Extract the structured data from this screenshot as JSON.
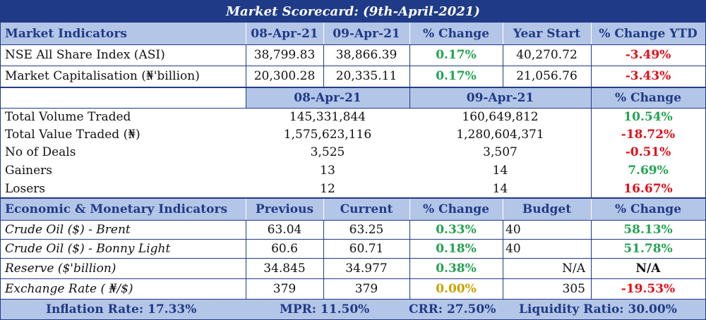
{
  "title": "Market Scorecard: (9th-April-2021)",
  "market": {
    "headers": [
      "Market Indicators",
      "08-Apr-21",
      "09-Apr-21",
      "% Change",
      "Year Start",
      "% Change YTD"
    ],
    "rows": [
      {
        "label": "NSE All Share Index (ASI)",
        "d1": "38,799.83",
        "d2": "38,866.39",
        "chg": "0.17%",
        "ys": "40,270.72",
        "ytd": "-3.49%"
      },
      {
        "label": "Market Capitalisation (₦'billion)",
        "d1": "20,300.28",
        "d2": "20,335.11",
        "chg": "0.17%",
        "ys": "21,056.76",
        "ytd": "-3.43%"
      }
    ]
  },
  "trading": {
    "headers": [
      "08-Apr-21",
      "09-Apr-21",
      "% Change"
    ],
    "rows": [
      {
        "label": "Total Volume Traded",
        "d1": "145,331,844",
        "d2": "160,649,812",
        "chg": "10.54%"
      },
      {
        "label": "Total Value Traded (₦)",
        "d1": "1,575,623,116",
        "d2": "1,280,604,371",
        "chg": "-18.72%"
      },
      {
        "label": "No of Deals",
        "d1": "3,525",
        "d2": "3,507",
        "chg": "-0.51%"
      },
      {
        "label": "Gainers",
        "d1": "13",
        "d2": "14",
        "chg": "7.69%"
      },
      {
        "label": "Losers",
        "d1": "12",
        "d2": "14",
        "chg": "16.67%"
      }
    ]
  },
  "economic": {
    "headers": [
      "Economic & Monetary Indicators",
      "Previous",
      "Current",
      "% Change",
      "Budget",
      "% Change"
    ],
    "rows": [
      {
        "label": "Crude Oil ($) - Brent",
        "prev": "63.04",
        "cur": "63.25",
        "chg": "0.33%",
        "budget": "40",
        "bchg": "58.13%"
      },
      {
        "label": "Crude Oil ($) - Bonny Light",
        "prev": "60.6",
        "cur": "60.71",
        "chg": "0.18%",
        "budget": "40",
        "bchg": "51.78%"
      },
      {
        "label": "Reserve ($'billion)",
        "prev": "34.845",
        "cur": "34.977",
        "chg": "0.38%",
        "budget": "N/A",
        "bchg": "N/A"
      },
      {
        "label": "Exchange Rate ( ₦/$)",
        "prev": "379",
        "cur": "379",
        "chg": "0.00%",
        "budget": "305",
        "bchg": "-19.53%"
      }
    ]
  },
  "footer": {
    "inflation": "Inflation Rate: 17.33%",
    "mpr": "MPR: 11.50%",
    "crr": "CRR: 27.50%",
    "liquidity": "Liquidity Ratio: 30.00%"
  },
  "colors": {
    "title_bg": "#1f3a87",
    "header_bg": "#b4c6e7",
    "positive": "#22a352",
    "negative": "#e0101a",
    "neutral": "#c9a100"
  }
}
